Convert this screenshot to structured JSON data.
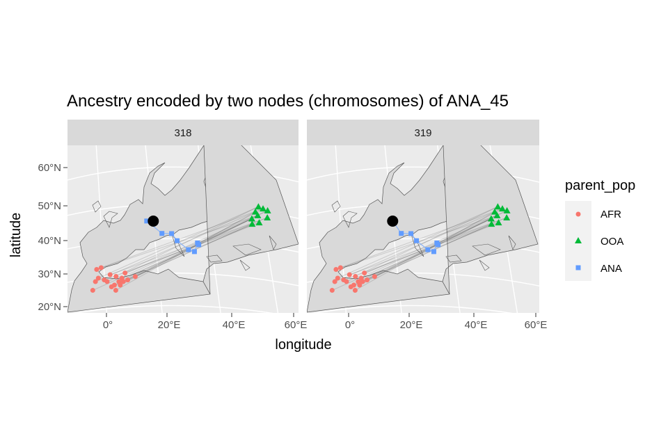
{
  "figure": {
    "title": "Ancestry encoded by two nodes (chromosomes) of ANA_45",
    "xlabel": "longitude",
    "ylabel": "latitude",
    "x_ticks": [
      "0°",
      "20°E",
      "40°E",
      "60°E"
    ],
    "y_ticks": [
      "60°N",
      "50°N",
      "40°N",
      "30°N",
      "20°N"
    ]
  },
  "panels": [
    {
      "label": "318"
    },
    {
      "label": "319"
    }
  ],
  "legend": {
    "title": "parent_pop",
    "items": [
      {
        "label": "AFR",
        "shape": "circle",
        "color": "#F8766D"
      },
      {
        "label": "OOA",
        "shape": "triangle",
        "color": "#00BA38"
      },
      {
        "label": "ANA",
        "shape": "square",
        "color": "#619CFF"
      }
    ]
  },
  "chart_data": {
    "type": "scatter",
    "facets": [
      "318",
      "319"
    ],
    "focal_node": {
      "lon": 14,
      "lat": 44.5,
      "color": "#000000"
    },
    "series": [
      {
        "name": "AFR",
        "color": "#F8766D",
        "points": [
          [
            -5,
            24.5
          ],
          [
            -4,
            27
          ],
          [
            -3,
            28
          ],
          [
            -3.5,
            30.5
          ],
          [
            -2,
            31
          ],
          [
            -1,
            27.5
          ],
          [
            0,
            27
          ],
          [
            1,
            29
          ],
          [
            1.5,
            25.5
          ],
          [
            2.5,
            26
          ],
          [
            3,
            24.5
          ],
          [
            3,
            28.5
          ],
          [
            4,
            27
          ],
          [
            4.5,
            26
          ],
          [
            5,
            28
          ],
          [
            5.5,
            27
          ],
          [
            6,
            29.5
          ],
          [
            7,
            27.5
          ],
          [
            9.5,
            28.5
          ]
        ]
      },
      {
        "name": "OOA",
        "color": "#00BA38",
        "points": [
          [
            43.5,
            46
          ],
          [
            44,
            48
          ],
          [
            44.5,
            49.5
          ],
          [
            45,
            47
          ],
          [
            46,
            49
          ],
          [
            46,
            45
          ],
          [
            47.5,
            48.5
          ],
          [
            48,
            46.5
          ],
          [
            44,
            44.5
          ]
        ]
      },
      {
        "name": "ANA",
        "color": "#619CFF",
        "points": [
          [
            12,
            44.5
          ],
          [
            17,
            41
          ],
          [
            20,
            41
          ],
          [
            22,
            39
          ],
          [
            26,
            36.5
          ],
          [
            28,
            36
          ],
          [
            28.5,
            38.5
          ],
          [
            29,
            38
          ]
        ]
      }
    ]
  }
}
